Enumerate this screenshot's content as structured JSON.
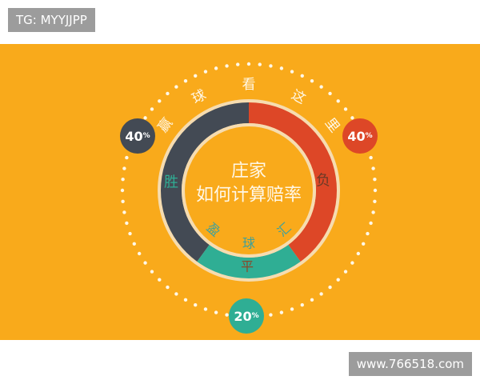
{
  "watermark_top": "TG: MYYJJPP",
  "watermark_bottom": "www.766518.com",
  "arc_title": [
    "赢",
    "球",
    "看",
    "这",
    "里"
  ],
  "center_title": [
    "庄家",
    "如何计算赔率"
  ],
  "inner_brand": [
    "盈",
    "球",
    "汇"
  ],
  "colors": {
    "background": "#f9aa1b",
    "win": "#434a54",
    "lose": "#dd4727",
    "draw": "#2fae94",
    "ring_border": "#f6dcb0"
  },
  "chart_data": {
    "type": "pie",
    "categories": [
      "胜",
      "负",
      "平"
    ],
    "values": [
      40,
      40,
      20
    ],
    "labels": [
      "40%",
      "40%",
      "20%"
    ]
  }
}
